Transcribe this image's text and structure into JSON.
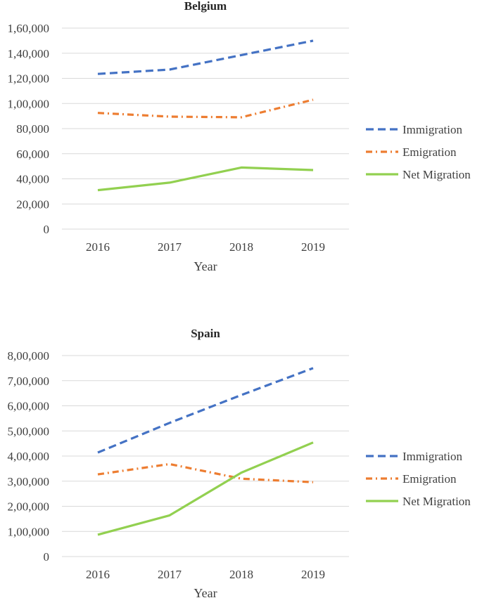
{
  "colors": {
    "immigration": "#4472c4",
    "emigration": "#ed7d31",
    "net": "#92d050",
    "grid": "#d9d9d9"
  },
  "chart_data": [
    {
      "type": "line",
      "title": "Belgium",
      "xlabel": "Year",
      "ylabel": "",
      "categories": [
        "2016",
        "2017",
        "2018",
        "2019"
      ],
      "ylim": [
        0,
        160000
      ],
      "ytick_values": [
        0,
        20000,
        40000,
        60000,
        80000,
        100000,
        120000,
        140000,
        160000
      ],
      "ytick_labels": [
        "0",
        "20,000",
        "40,000",
        "60,000",
        "80,000",
        "1,00,000",
        "1,20,000",
        "1,40,000",
        "1,60,000"
      ],
      "grid": true,
      "legend_position": "right",
      "series": [
        {
          "name": "Immigration",
          "style": "dashed",
          "values": [
            123500,
            127000,
            138500,
            150000
          ]
        },
        {
          "name": "Emigration",
          "style": "dash-dot",
          "values": [
            92500,
            89500,
            89000,
            103000
          ]
        },
        {
          "name": "Net Migration",
          "style": "solid",
          "values": [
            31000,
            37000,
            49000,
            47000
          ]
        }
      ]
    },
    {
      "type": "line",
      "title": "Spain",
      "xlabel": "Year",
      "ylabel": "",
      "categories": [
        "2016",
        "2017",
        "2018",
        "2019"
      ],
      "ylim": [
        0,
        800000
      ],
      "ytick_values": [
        0,
        100000,
        200000,
        300000,
        400000,
        500000,
        600000,
        700000,
        800000
      ],
      "ytick_labels": [
        "0",
        "1,00,000",
        "2,00,000",
        "3,00,000",
        "4,00,000",
        "5,00,000",
        "6,00,000",
        "7,00,000",
        "8,00,000"
      ],
      "grid": true,
      "legend_position": "right",
      "series": [
        {
          "name": "Immigration",
          "style": "dashed",
          "values": [
            414000,
            532000,
            643000,
            750000
          ]
        },
        {
          "name": "Emigration",
          "style": "dash-dot",
          "values": [
            327000,
            368000,
            310000,
            296000
          ]
        },
        {
          "name": "Net Migration",
          "style": "solid",
          "values": [
            87000,
            164000,
            334000,
            454000
          ]
        }
      ]
    }
  ]
}
